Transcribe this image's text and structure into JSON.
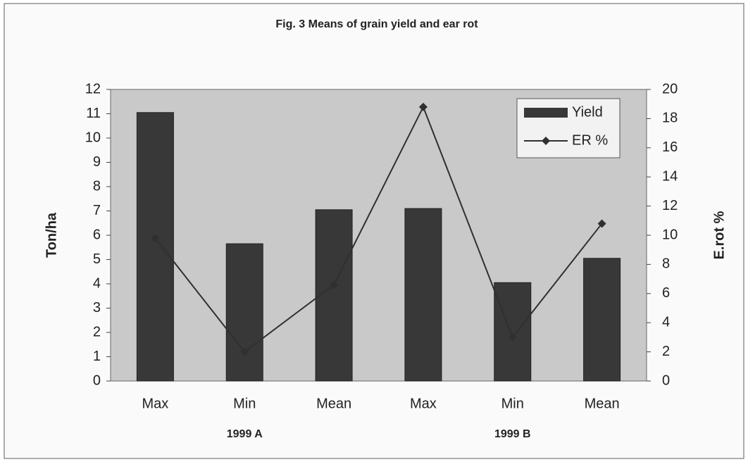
{
  "chart_data": {
    "type": "bar_line",
    "title": "Fig. 3  Means of grain yield and ear rot",
    "categories": [
      "Max",
      "Min",
      "Mean",
      "Max",
      "Min",
      "Mean"
    ],
    "group_labels": [
      "1999 A",
      "1999 B"
    ],
    "y_label": "Ton/ha",
    "y2_label": "E.rot %",
    "series": [
      {
        "name": "Yield",
        "type": "bar",
        "color": "#383838",
        "values": [
          11.05,
          5.65,
          7.05,
          7.1,
          4.05,
          5.05
        ]
      },
      {
        "name": "ER %",
        "type": "line",
        "axis": "y2",
        "color": "#303030",
        "values": [
          9.8,
          2.0,
          6.6,
          18.8,
          3.0,
          10.8
        ]
      }
    ],
    "ylim": [
      0,
      12
    ],
    "yticks": [
      0,
      1,
      2,
      3,
      4,
      5,
      6,
      7,
      8,
      9,
      10,
      11,
      12
    ],
    "y2lim": [
      0,
      20
    ],
    "y2ticks": [
      0,
      2,
      4,
      6,
      8,
      10,
      12,
      14,
      16,
      18,
      20
    ],
    "legend": "upper right",
    "grid": false
  }
}
